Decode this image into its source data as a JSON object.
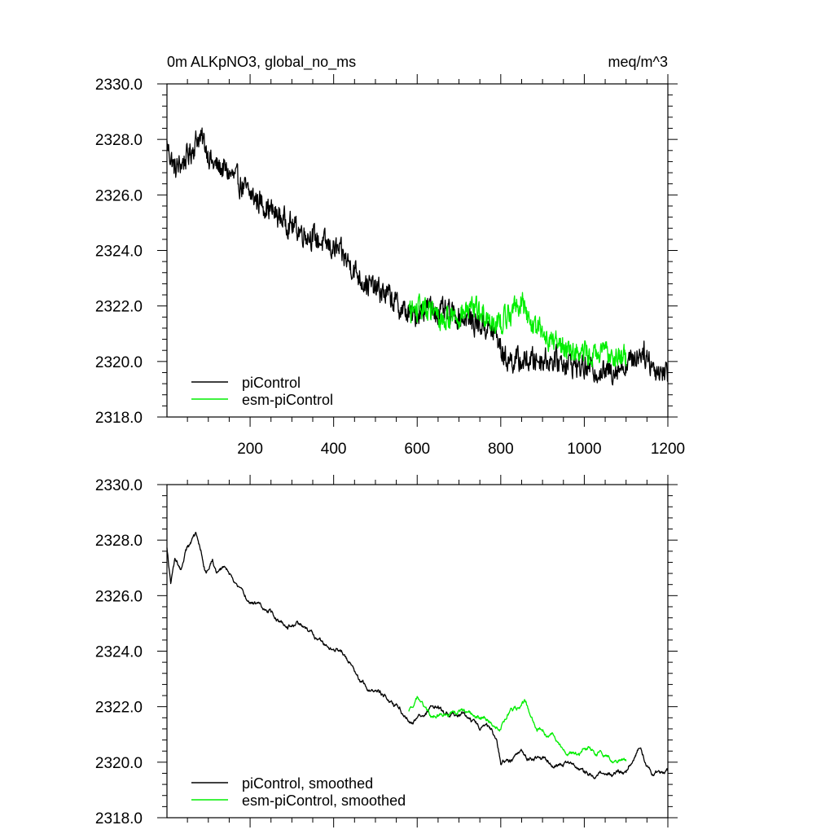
{
  "colors": {
    "piControl": "#000000",
    "esm-piControl": "#00ee00",
    "frame": "#000000"
  },
  "chart_data": [
    {
      "type": "line",
      "title_left": "0m ALKpNO3, global_no_ms",
      "title_right": "meq/m^3",
      "xlim": [
        1,
        1200
      ],
      "ylim": [
        2318,
        2330
      ],
      "xticks": [
        200,
        400,
        600,
        800,
        1000,
        1200
      ],
      "xtick_labels": [
        "200",
        "400",
        "600",
        "800",
        "1000",
        "1200"
      ],
      "yticks": [
        2318,
        2320,
        2322,
        2324,
        2326,
        2328,
        2330
      ],
      "ytick_labels": [
        "2318.0",
        "2320.0",
        "2322.0",
        "2324.0",
        "2326.0",
        "2328.0",
        "2330.0"
      ],
      "legend_position": "bottom-left",
      "series": [
        {
          "name": "piControl",
          "color": "#000000",
          "x_range": [
            1,
            1200
          ],
          "anchor_x": [
            1,
            20,
            40,
            60,
            75,
            90,
            110,
            140,
            170,
            200,
            230,
            260,
            290,
            320,
            350,
            380,
            410,
            440,
            470,
            500,
            530,
            560,
            590,
            620,
            650,
            680,
            710,
            740,
            770,
            790,
            810,
            850,
            900,
            950,
            1000,
            1050,
            1100,
            1140,
            1170,
            1200
          ],
          "anchor_y": [
            2327.8,
            2326.9,
            2327.2,
            2327.6,
            2328.1,
            2327.9,
            2327.1,
            2326.9,
            2326.5,
            2326.0,
            2325.7,
            2325.3,
            2325.0,
            2324.7,
            2324.5,
            2324.2,
            2324.0,
            2323.5,
            2322.9,
            2322.6,
            2322.4,
            2321.9,
            2321.6,
            2322.0,
            2321.8,
            2321.7,
            2321.6,
            2321.4,
            2321.2,
            2320.9,
            2320.1,
            2320.0,
            2320.1,
            2320.0,
            2319.8,
            2319.6,
            2319.9,
            2320.4,
            2319.7,
            2319.6
          ],
          "noise_amplitude": 0.45
        },
        {
          "name": "esm-piControl",
          "color": "#00ee00",
          "x_range": [
            580,
            1100
          ],
          "anchor_x": [
            580,
            620,
            660,
            700,
            740,
            780,
            800,
            830,
            850,
            870,
            900,
            940,
            980,
            1020,
            1060,
            1100
          ],
          "anchor_y": [
            2321.8,
            2321.9,
            2321.5,
            2321.7,
            2321.9,
            2321.5,
            2321.4,
            2321.9,
            2322.2,
            2321.4,
            2321.0,
            2320.6,
            2320.4,
            2320.2,
            2320.3,
            2320.1
          ],
          "noise_amplitude": 0.45
        }
      ]
    },
    {
      "type": "line",
      "xlim": [
        1,
        1200
      ],
      "ylim": [
        2318,
        2330
      ],
      "xticks": [
        200,
        400,
        600,
        800,
        1000,
        1200
      ],
      "yticks": [
        2318,
        2320,
        2322,
        2324,
        2326,
        2328,
        2330
      ],
      "ytick_labels": [
        "2318.0",
        "2320.0",
        "2322.0",
        "2324.0",
        "2326.0",
        "2328.0",
        "2330.0"
      ],
      "legend_position": "bottom-left",
      "series": [
        {
          "name": "piControl, smoothed",
          "color": "#000000",
          "x_range": [
            1,
            1200
          ],
          "anchor_x": [
            1,
            10,
            20,
            35,
            45,
            60,
            70,
            85,
            95,
            110,
            120,
            140,
            160,
            180,
            200,
            230,
            260,
            290,
            320,
            350,
            380,
            410,
            440,
            470,
            500,
            530,
            560,
            590,
            620,
            650,
            680,
            710,
            740,
            770,
            790,
            800,
            850,
            900,
            950,
            1000,
            1050,
            1100,
            1130,
            1150,
            1170,
            1200
          ],
          "anchor_y": [
            2327.7,
            2326.4,
            2327.2,
            2326.9,
            2327.6,
            2327.9,
            2328.1,
            2327.4,
            2326.8,
            2327.3,
            2326.9,
            2327.1,
            2326.6,
            2326.2,
            2325.8,
            2325.6,
            2325.3,
            2325.0,
            2324.9,
            2324.5,
            2324.3,
            2324.1,
            2323.6,
            2322.8,
            2322.6,
            2322.3,
            2321.9,
            2321.4,
            2322.0,
            2321.9,
            2321.6,
            2321.7,
            2321.3,
            2321.1,
            2320.8,
            2319.9,
            2320.2,
            2320.1,
            2319.9,
            2319.6,
            2319.5,
            2319.8,
            2320.7,
            2319.9,
            2319.6,
            2319.7
          ],
          "noise_amplitude": 0.2
        },
        {
          "name": "esm-piControl, smoothed",
          "color": "#00ee00",
          "x_range": [
            580,
            1100
          ],
          "anchor_x": [
            580,
            600,
            630,
            660,
            700,
            740,
            770,
            800,
            820,
            840,
            860,
            880,
            900,
            930,
            960,
            1000,
            1040,
            1070,
            1100
          ],
          "anchor_y": [
            2321.8,
            2322.3,
            2321.7,
            2321.6,
            2321.9,
            2321.6,
            2321.5,
            2321.3,
            2321.8,
            2321.9,
            2322.1,
            2321.3,
            2321.1,
            2320.8,
            2320.2,
            2320.5,
            2320.3,
            2320.2,
            2320.1
          ],
          "noise_amplitude": 0.2
        }
      ]
    }
  ]
}
